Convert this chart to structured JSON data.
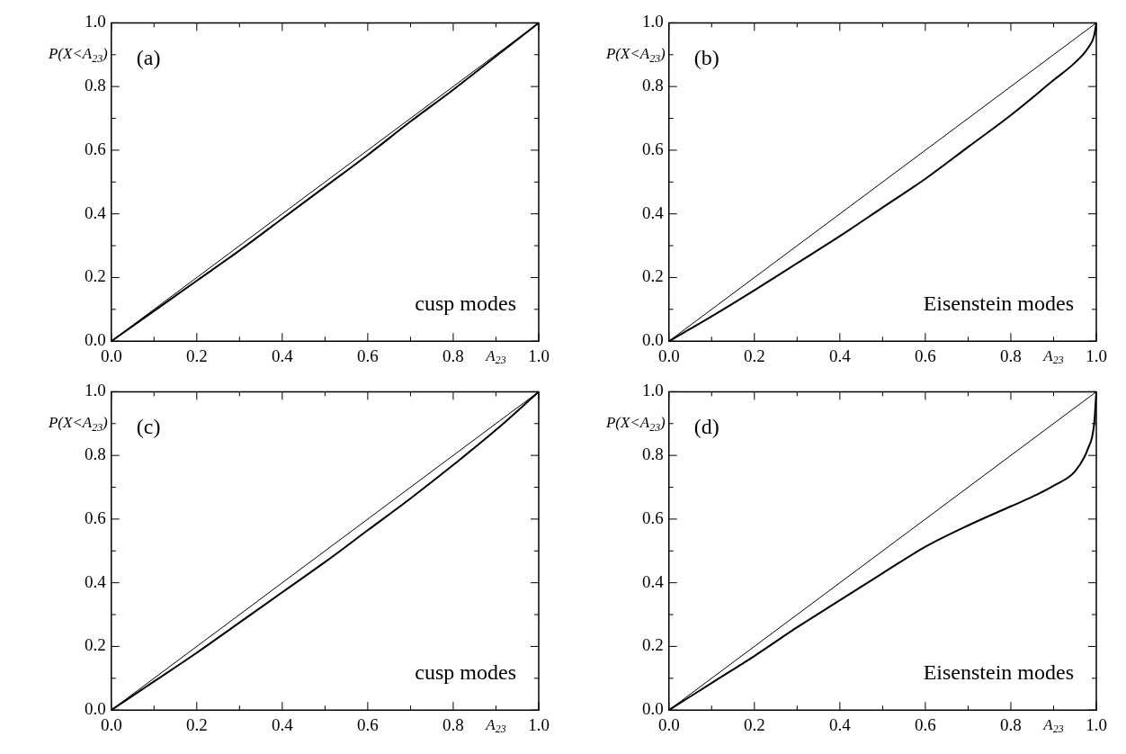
{
  "chart_data": [
    {
      "type": "line",
      "ylabel": "P(X<A$_{23}$)",
      "xlabel": "A$_{23}$",
      "annotations": [
        "(a)",
        "cusp modes"
      ],
      "xlim": [
        0,
        1
      ],
      "ylim": [
        0,
        1
      ],
      "xticks": [
        {
          "value": 0,
          "label": "0.0"
        },
        {
          "value": 0.1,
          "label": null
        },
        {
          "value": 0.2,
          "label": "0.2"
        },
        {
          "value": 0.3,
          "label": null
        },
        {
          "value": 0.4,
          "label": "0.4"
        },
        {
          "value": 0.5,
          "label": null
        },
        {
          "value": 0.6,
          "label": "0.6"
        },
        {
          "value": 0.7,
          "label": null
        },
        {
          "value": 0.8,
          "label": "0.8"
        },
        {
          "value": 0.9,
          "label": null
        },
        {
          "value": 1,
          "label": "1.0"
        }
      ],
      "yticks": [
        {
          "value": 0,
          "label": "0.0"
        },
        {
          "value": 0.1,
          "label": null
        },
        {
          "value": 0.2,
          "label": "0.2"
        },
        {
          "value": 0.3,
          "label": null
        },
        {
          "value": 0.4,
          "label": "0.4"
        },
        {
          "value": 0.5,
          "label": null
        },
        {
          "value": 0.6,
          "label": "0.6"
        },
        {
          "value": 0.7,
          "label": null
        },
        {
          "value": 0.8,
          "label": "0.8"
        },
        {
          "value": 0.9,
          "label": null
        },
        {
          "value": 1,
          "label": "1.0"
        }
      ],
      "grid": false,
      "legend": false,
      "marker": "none",
      "series": [
        {
          "color": "#000000",
          "x": [
            0,
            1
          ],
          "values": [
            0,
            1
          ]
        },
        {
          "color": "#000000",
          "x": [
            0,
            0.1,
            0.2,
            0.3,
            0.4,
            0.5,
            0.6,
            0.7,
            0.8,
            0.9,
            1
          ],
          "values": [
            0,
            0.095,
            0.19,
            0.285,
            0.385,
            0.485,
            0.585,
            0.69,
            0.79,
            0.895,
            1
          ]
        }
      ]
    },
    {
      "type": "line",
      "ylabel": "P(X<A$_{23}$)",
      "xlabel": "A$_{23}$",
      "annotations": [
        "(b)",
        "Eisenstein modes"
      ],
      "xlim": [
        0,
        1
      ],
      "ylim": [
        0,
        1
      ],
      "xticks": [
        {
          "value": 0,
          "label": "0.0"
        },
        {
          "value": 0.1,
          "label": null
        },
        {
          "value": 0.2,
          "label": "0.2"
        },
        {
          "value": 0.3,
          "label": null
        },
        {
          "value": 0.4,
          "label": "0.4"
        },
        {
          "value": 0.5,
          "label": null
        },
        {
          "value": 0.6,
          "label": "0.6"
        },
        {
          "value": 0.7,
          "label": null
        },
        {
          "value": 0.8,
          "label": "0.8"
        },
        {
          "value": 0.9,
          "label": null
        },
        {
          "value": 1,
          "label": "1.0"
        }
      ],
      "yticks": [
        {
          "value": 0,
          "label": "0.0"
        },
        {
          "value": 0.1,
          "label": null
        },
        {
          "value": 0.2,
          "label": "0.2"
        },
        {
          "value": 0.3,
          "label": null
        },
        {
          "value": 0.4,
          "label": "0.4"
        },
        {
          "value": 0.5,
          "label": null
        },
        {
          "value": 0.6,
          "label": "0.6"
        },
        {
          "value": 0.7,
          "label": null
        },
        {
          "value": 0.8,
          "label": "0.8"
        },
        {
          "value": 0.9,
          "label": null
        },
        {
          "value": 1,
          "label": "1.0"
        }
      ],
      "grid": false,
      "legend": false,
      "marker": "none",
      "series": [
        {
          "color": "#000000",
          "x": [
            0,
            1
          ],
          "values": [
            0,
            1
          ]
        },
        {
          "color": "#000000",
          "x": [
            0,
            0.1,
            0.2,
            0.3,
            0.4,
            0.5,
            0.6,
            0.7,
            0.8,
            0.9,
            0.95,
            0.98,
            0.995,
            1
          ],
          "values": [
            0,
            0.078,
            0.16,
            0.245,
            0.33,
            0.42,
            0.51,
            0.61,
            0.71,
            0.82,
            0.875,
            0.92,
            0.96,
            1
          ]
        }
      ]
    },
    {
      "type": "line",
      "ylabel": "P(X<A$_{23}$)",
      "xlabel": "A$_{23}$",
      "annotations": [
        "(c)",
        "cusp modes"
      ],
      "xlim": [
        0,
        1
      ],
      "ylim": [
        0,
        1
      ],
      "xticks": [
        {
          "value": 0,
          "label": "0.0"
        },
        {
          "value": 0.1,
          "label": null
        },
        {
          "value": 0.2,
          "label": "0.2"
        },
        {
          "value": 0.3,
          "label": null
        },
        {
          "value": 0.4,
          "label": "0.4"
        },
        {
          "value": 0.5,
          "label": null
        },
        {
          "value": 0.6,
          "label": "0.6"
        },
        {
          "value": 0.7,
          "label": null
        },
        {
          "value": 0.8,
          "label": "0.8"
        },
        {
          "value": 0.9,
          "label": null
        },
        {
          "value": 1,
          "label": "1.0"
        }
      ],
      "yticks": [
        {
          "value": 0,
          "label": "0.0"
        },
        {
          "value": 0.1,
          "label": null
        },
        {
          "value": 0.2,
          "label": "0.2"
        },
        {
          "value": 0.3,
          "label": null
        },
        {
          "value": 0.4,
          "label": "0.4"
        },
        {
          "value": 0.5,
          "label": null
        },
        {
          "value": 0.6,
          "label": "0.6"
        },
        {
          "value": 0.7,
          "label": null
        },
        {
          "value": 0.8,
          "label": "0.8"
        },
        {
          "value": 0.9,
          "label": null
        },
        {
          "value": 1,
          "label": "1.0"
        }
      ],
      "grid": false,
      "legend": false,
      "marker": "none",
      "series": [
        {
          "color": "#000000",
          "x": [
            0,
            1
          ],
          "values": [
            0,
            1
          ]
        },
        {
          "color": "#000000",
          "x": [
            0,
            0.1,
            0.2,
            0.3,
            0.4,
            0.5,
            0.6,
            0.7,
            0.8,
            0.9,
            1
          ],
          "values": [
            0,
            0.09,
            0.18,
            0.275,
            0.37,
            0.465,
            0.565,
            0.665,
            0.77,
            0.88,
            1
          ]
        }
      ]
    },
    {
      "type": "line",
      "ylabel": "P(X<A$_{23}$)",
      "xlabel": "A$_{23}$",
      "annotations": [
        "(d)",
        "Eisenstein modes"
      ],
      "xlim": [
        0,
        1
      ],
      "ylim": [
        0,
        1
      ],
      "xticks": [
        {
          "value": 0,
          "label": "0.0"
        },
        {
          "value": 0.1,
          "label": null
        },
        {
          "value": 0.2,
          "label": "0.2"
        },
        {
          "value": 0.3,
          "label": null
        },
        {
          "value": 0.4,
          "label": "0.4"
        },
        {
          "value": 0.5,
          "label": null
        },
        {
          "value": 0.6,
          "label": "0.6"
        },
        {
          "value": 0.7,
          "label": null
        },
        {
          "value": 0.8,
          "label": "0.8"
        },
        {
          "value": 0.9,
          "label": null
        },
        {
          "value": 1,
          "label": "1.0"
        }
      ],
      "yticks": [
        {
          "value": 0,
          "label": "0.0"
        },
        {
          "value": 0.1,
          "label": null
        },
        {
          "value": 0.2,
          "label": "0.2"
        },
        {
          "value": 0.3,
          "label": null
        },
        {
          "value": 0.4,
          "label": "0.4"
        },
        {
          "value": 0.5,
          "label": null
        },
        {
          "value": 0.6,
          "label": "0.6"
        },
        {
          "value": 0.7,
          "label": null
        },
        {
          "value": 0.8,
          "label": "0.8"
        },
        {
          "value": 0.9,
          "label": null
        },
        {
          "value": 1,
          "label": "1.0"
        }
      ],
      "grid": false,
      "legend": false,
      "marker": "none",
      "series": [
        {
          "color": "#000000",
          "x": [
            0,
            1
          ],
          "values": [
            0,
            1
          ]
        },
        {
          "color": "#000000",
          "x": [
            0,
            0.1,
            0.2,
            0.3,
            0.4,
            0.5,
            0.6,
            0.7,
            0.8,
            0.85,
            0.9,
            0.95,
            0.98,
            0.995,
            1
          ],
          "values": [
            0,
            0.085,
            0.17,
            0.26,
            0.345,
            0.43,
            0.513,
            0.58,
            0.64,
            0.67,
            0.705,
            0.75,
            0.82,
            0.9,
            1
          ]
        }
      ]
    }
  ]
}
